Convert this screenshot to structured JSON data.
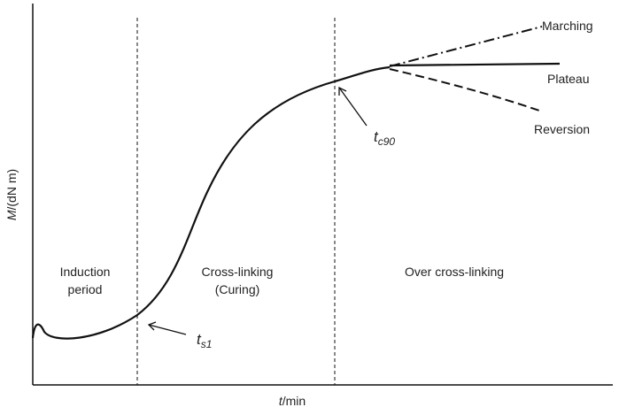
{
  "axes": {
    "y_label": {
      "symbol": "M",
      "unit": "/(dN m)"
    },
    "x_label": {
      "symbol": "t",
      "unit": "/min"
    }
  },
  "regions": [
    {
      "lines": [
        "Induction",
        "period"
      ]
    },
    {
      "lines": [
        "Cross-linking",
        "(Curing)"
      ]
    },
    {
      "lines": [
        "Over cross-linking"
      ]
    }
  ],
  "curves": {
    "marching": "Marching",
    "plateau": "Plateau",
    "reversion": "Reversion"
  },
  "markers": {
    "ts1": {
      "symbol": "t",
      "subscript": "s1"
    },
    "tc90": {
      "symbol": "t",
      "subscript": "c90"
    }
  }
}
